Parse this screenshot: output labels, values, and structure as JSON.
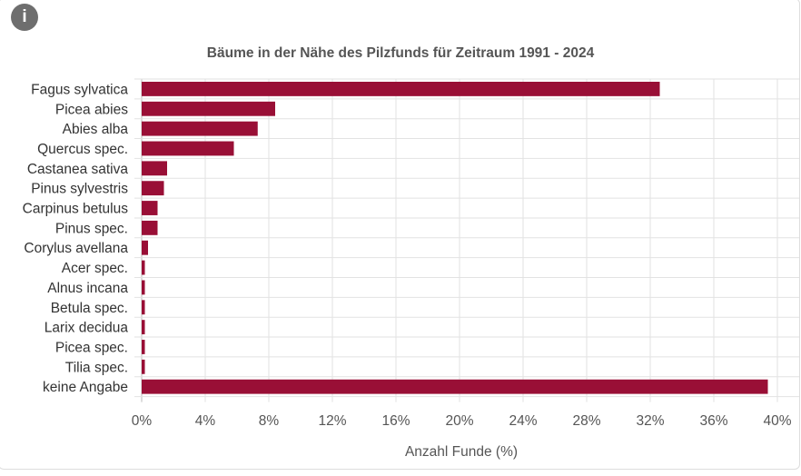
{
  "info_icon": "info-icon",
  "chart_data": {
    "type": "bar",
    "orientation": "horizontal",
    "title": "Bäume in der Nähe des Pilzfunds für Zeitraum 1991 - 2024",
    "xlabel": "Anzahl Funde (%)",
    "ylabel": "",
    "xlim": [
      0,
      40
    ],
    "xticks": [
      0,
      4,
      8,
      12,
      16,
      20,
      24,
      28,
      32,
      36,
      40
    ],
    "xtick_labels": [
      "0%",
      "4%",
      "8%",
      "12%",
      "16%",
      "20%",
      "24%",
      "28%",
      "32%",
      "36%",
      "40%"
    ],
    "grid": true,
    "categories": [
      "Fagus sylvatica",
      "Picea abies",
      "Abies alba",
      "Quercus spec.",
      "Castanea sativa",
      "Pinus sylvestris",
      "Carpinus betulus",
      "Pinus spec.",
      "Corylus avellana",
      "Acer spec.",
      "Alnus incana",
      "Betula spec.",
      "Larix decidua",
      "Picea spec.",
      "Tilia spec.",
      "keine Angabe"
    ],
    "values": [
      32.6,
      8.4,
      7.3,
      5.8,
      1.6,
      1.4,
      1.0,
      1.0,
      0.4,
      0.2,
      0.2,
      0.2,
      0.2,
      0.2,
      0.2,
      39.4
    ],
    "color": "#990f36"
  }
}
